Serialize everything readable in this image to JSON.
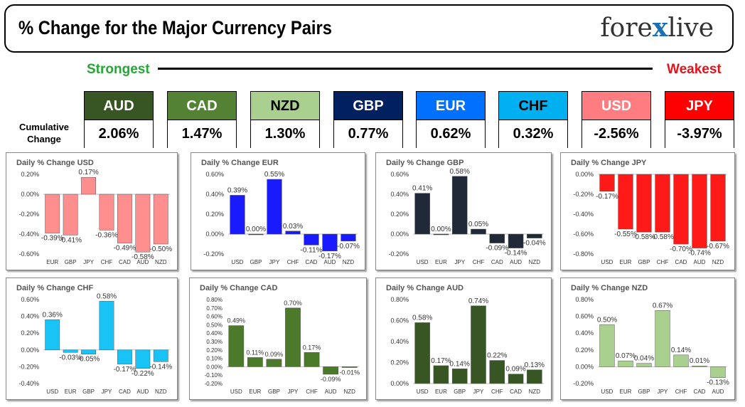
{
  "header": {
    "title": "% Change for the Major Currency Pairs",
    "logo_left": "fore",
    "logo_x": "x",
    "logo_right": "live"
  },
  "strength": {
    "strongest": "Strongest",
    "weakest": "Weakest"
  },
  "cumulative_label_1": "Cumulative",
  "cumulative_label_2": "Change",
  "currencies": [
    {
      "name": "AUD",
      "value": "2.06%",
      "bg": "#375623",
      "fg": "#ffffff"
    },
    {
      "name": "CAD",
      "value": "1.47%",
      "bg": "#548235",
      "fg": "#ffffff"
    },
    {
      "name": "NZD",
      "value": "1.30%",
      "bg": "#a9d08e",
      "fg": "#000000"
    },
    {
      "name": "GBP",
      "value": "0.77%",
      "bg": "#002060",
      "fg": "#ffffff"
    },
    {
      "name": "EUR",
      "value": "0.62%",
      "bg": "#0070ff",
      "fg": "#ffffff"
    },
    {
      "name": "CHF",
      "value": "0.32%",
      "bg": "#00b0f0",
      "fg": "#000000"
    },
    {
      "name": "USD",
      "value": "-2.56%",
      "bg": "#ff7c80",
      "fg": "#ffffff"
    },
    {
      "name": "JPY",
      "value": "-3.97%",
      "bg": "#ff0000",
      "fg": "#ffffff"
    }
  ],
  "chart_data": [
    {
      "type": "bar",
      "title": "Daily % Change USD",
      "categories": [
        "EUR",
        "GBP",
        "JPY",
        "CHF",
        "CAD",
        "AUD",
        "NZD"
      ],
      "values": [
        -0.39,
        -0.41,
        0.17,
        -0.36,
        -0.49,
        -0.58,
        -0.5
      ],
      "labels": [
        "-0.39%",
        "-0.41%",
        "0.17%",
        "-0.36%",
        "-0.49%",
        "-0.58%",
        "-0.50%"
      ],
      "ylim": [
        -0.6,
        0.2
      ],
      "ticks": [
        -0.6,
        -0.4,
        -0.2,
        0.0,
        0.2
      ],
      "tick_labels": [
        "-0.60%",
        "-0.40%",
        "-0.20%",
        "0.00%",
        "0.20%"
      ],
      "color": "#ff8f8f",
      "grid": false
    },
    {
      "type": "bar",
      "title": "Daily % Change EUR",
      "categories": [
        "USD",
        "GBP",
        "JPY",
        "CHF",
        "CAD",
        "AUD",
        "NZD"
      ],
      "values": [
        0.39,
        0.0,
        0.55,
        0.03,
        -0.11,
        -0.17,
        -0.07
      ],
      "labels": [
        "0.39%",
        "0.00%",
        "0.55%",
        "0.03%",
        "-0.11%",
        "-0.17%",
        "-0.07%"
      ],
      "ylim": [
        -0.2,
        0.6
      ],
      "ticks": [
        -0.2,
        0.0,
        0.2,
        0.4,
        0.6
      ],
      "tick_labels": [
        "-0.20%",
        "0.00%",
        "0.20%",
        "0.40%",
        "0.60%"
      ],
      "color": "#1a1aff",
      "grid": false
    },
    {
      "type": "bar",
      "title": "Daily % Change GBP",
      "categories": [
        "USD",
        "EUR",
        "JPY",
        "CHF",
        "CAD",
        "AUD",
        "NZD"
      ],
      "values": [
        0.41,
        0.0,
        0.58,
        0.05,
        -0.09,
        -0.14,
        -0.04
      ],
      "labels": [
        "0.41%",
        "0.00%",
        "0.58%",
        "0.05%",
        "-0.09%",
        "-0.14%",
        "-0.04%"
      ],
      "ylim": [
        -0.2,
        0.6
      ],
      "ticks": [
        -0.2,
        0.0,
        0.2,
        0.4,
        0.6
      ],
      "tick_labels": [
        "-0.20%",
        "0.00%",
        "0.20%",
        "0.40%",
        "0.60%"
      ],
      "color": "#1f2937",
      "grid": false
    },
    {
      "type": "bar",
      "title": "Daily % Change JPY",
      "categories": [
        "USD",
        "EUR",
        "GBP",
        "CHF",
        "CAD",
        "AUD",
        "NZD"
      ],
      "values": [
        -0.17,
        -0.55,
        -0.58,
        -0.58,
        -0.7,
        -0.74,
        -0.67
      ],
      "labels": [
        "-0.17%",
        "-0.55%",
        "-0.58%",
        "-0.58%",
        "-0.70%",
        "-0.74%",
        "-0.67%"
      ],
      "ylim": [
        -0.8,
        0.0
      ],
      "ticks": [
        -0.8,
        -0.6,
        -0.4,
        -0.2,
        0.0
      ],
      "tick_labels": [
        "-0.80%",
        "-0.60%",
        "-0.40%",
        "-0.20%",
        "0.00%"
      ],
      "color": "#ff1a1a",
      "grid": false
    },
    {
      "type": "bar",
      "title": "Daily % Change CHF",
      "categories": [
        "USD",
        "EUR",
        "GBP",
        "JPY",
        "CAD",
        "AUD",
        "NZD"
      ],
      "values": [
        0.36,
        -0.03,
        -0.05,
        0.58,
        -0.17,
        -0.22,
        -0.14
      ],
      "labels": [
        "0.36%",
        "-0.03%",
        "-0.05%",
        "0.58%",
        "-0.17%",
        "-0.22%",
        "-0.14%"
      ],
      "ylim": [
        -0.4,
        0.6
      ],
      "ticks": [
        -0.4,
        -0.2,
        0.0,
        0.2,
        0.4,
        0.6
      ],
      "tick_labels": [
        "-0.40%",
        "-0.20%",
        "0.00%",
        "0.20%",
        "0.40%",
        "0.60%"
      ],
      "color": "#19c3f5",
      "grid": false
    },
    {
      "type": "bar",
      "title": "Daily % Change CAD",
      "categories": [
        "USD",
        "EUR",
        "GBP",
        "JPY",
        "CHF",
        "AUD",
        "NZD"
      ],
      "values": [
        0.49,
        0.11,
        0.09,
        0.7,
        0.17,
        -0.09,
        -0.01
      ],
      "labels": [
        "0.49%",
        "0.11%",
        "0.09%",
        "0.70%",
        "0.17%",
        "-0.09%",
        "-0.01%"
      ],
      "ylim": [
        -0.2,
        0.8
      ],
      "ticks": [
        -0.2,
        -0.1,
        0.0,
        0.1,
        0.2,
        0.3,
        0.4,
        0.5,
        0.6,
        0.7,
        0.8
      ],
      "tick_labels": [
        "-0.20%",
        "-0.10%",
        "0.00%",
        "0.10%",
        "0.20%",
        "0.30%",
        "0.40%",
        "0.50%",
        "0.60%",
        "0.70%",
        "0.80%"
      ],
      "color": "#4a7a2a",
      "grid": false
    },
    {
      "type": "bar",
      "title": "Daily % Change AUD",
      "categories": [
        "USD",
        "EUR",
        "GBP",
        "JPY",
        "CHF",
        "CAD",
        "NZD"
      ],
      "values": [
        0.58,
        0.17,
        0.14,
        0.74,
        0.22,
        0.09,
        0.13
      ],
      "labels": [
        "0.58%",
        "0.17%",
        "0.14%",
        "0.74%",
        "0.22%",
        "0.09%",
        "0.13%"
      ],
      "ylim": [
        0.0,
        0.8
      ],
      "ticks": [
        0.0,
        0.2,
        0.4,
        0.6,
        0.8
      ],
      "tick_labels": [
        "0.00%",
        "0.20%",
        "0.40%",
        "0.60%",
        "0.80%"
      ],
      "color": "#375623",
      "grid": false
    },
    {
      "type": "bar",
      "title": "Daily % Change NZD",
      "categories": [
        "USD",
        "EUR",
        "GBP",
        "JPY",
        "CHF",
        "CAD",
        "AUD"
      ],
      "values": [
        0.5,
        0.07,
        0.04,
        0.67,
        0.14,
        0.01,
        -0.13
      ],
      "labels": [
        "0.50%",
        "0.07%",
        "0.04%",
        "0.67%",
        "0.14%",
        "0.01%",
        "-0.13%"
      ],
      "ylim": [
        -0.2,
        0.8
      ],
      "ticks": [
        -0.2,
        0.0,
        0.2,
        0.4,
        0.6,
        0.8
      ],
      "tick_labels": [
        "-0.20%",
        "0.00%",
        "0.20%",
        "0.40%",
        "0.60%",
        "0.80%"
      ],
      "color": "#a9d08e",
      "grid": false
    }
  ]
}
